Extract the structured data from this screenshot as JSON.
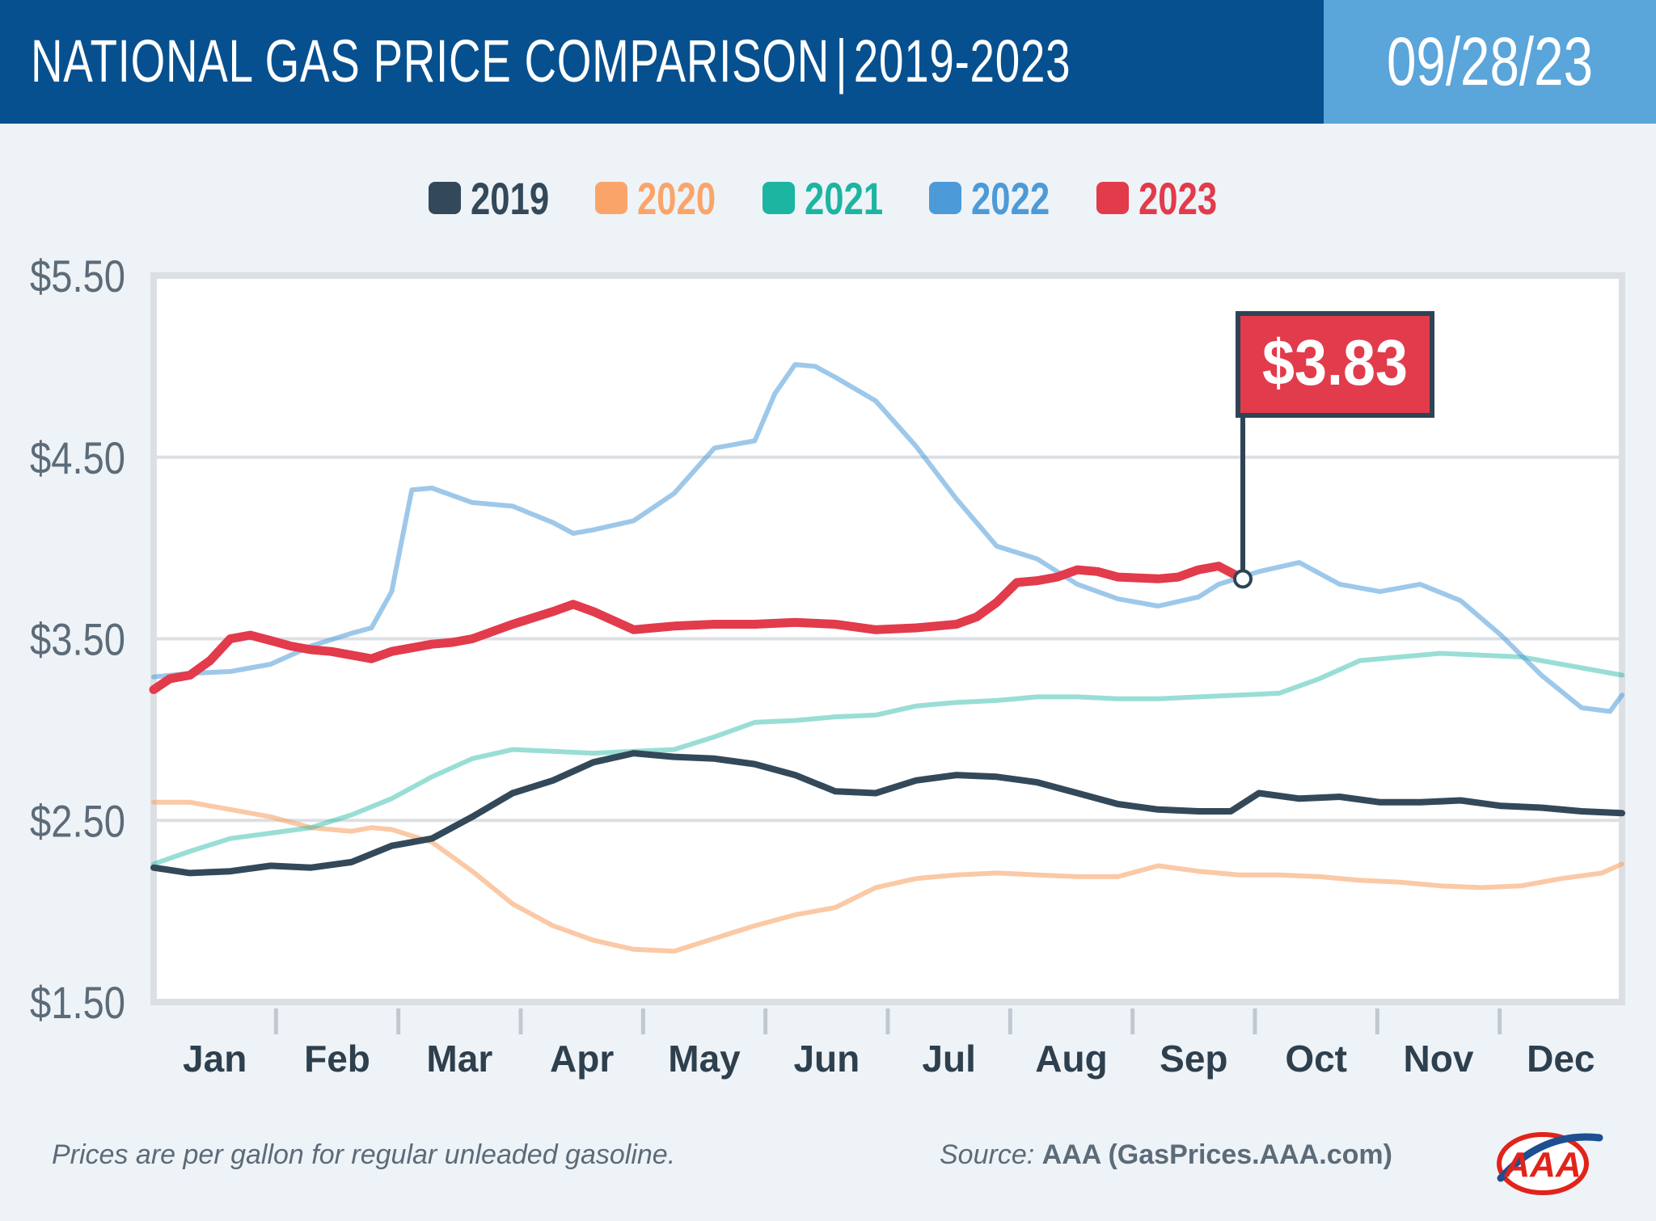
{
  "header": {
    "title_main": "NATIONAL GAS PRICE COMPARISON",
    "title_separator": "|",
    "title_years": "2019-2023",
    "date": "09/28/23"
  },
  "colors": {
    "header_bg": "#06508f",
    "date_bg": "#5aa5da",
    "2019": "#33495a",
    "2020": "#f9a56a",
    "2021": "#1cb5a2",
    "2022": "#4d9ad8",
    "2023": "#e23b4b"
  },
  "chart_data": {
    "type": "line",
    "title": "",
    "xlabel": "",
    "ylabel": "",
    "ylim": [
      1.5,
      5.5
    ],
    "y_tick_values": [
      1.5,
      2.5,
      3.5,
      4.5,
      5.5
    ],
    "y_tick_labels": [
      "$1.50",
      "$2.50",
      "$3.50",
      "$4.50",
      "$5.50"
    ],
    "months": [
      "Jan",
      "Feb",
      "Mar",
      "Apr",
      "May",
      "Jun",
      "Jul",
      "Aug",
      "Sep",
      "Oct",
      "Nov",
      "Dec"
    ],
    "x_unit": "day of year",
    "xlim": [
      1,
      365
    ],
    "grid": true,
    "legend_position": "top-center",
    "callout": {
      "label": "$3.83",
      "series": "2023",
      "x": 271,
      "y": 3.83
    },
    "series": [
      {
        "name": "2019",
        "x": [
          1,
          10,
          20,
          30,
          40,
          50,
          60,
          70,
          80,
          90,
          100,
          110,
          120,
          130,
          140,
          150,
          160,
          170,
          180,
          190,
          200,
          210,
          220,
          230,
          240,
          250,
          260,
          268,
          275,
          285,
          295,
          305,
          315,
          325,
          335,
          345,
          355,
          365
        ],
        "y": [
          2.24,
          2.21,
          2.22,
          2.25,
          2.24,
          2.27,
          2.36,
          2.4,
          2.52,
          2.65,
          2.72,
          2.82,
          2.87,
          2.85,
          2.84,
          2.81,
          2.75,
          2.66,
          2.65,
          2.72,
          2.75,
          2.74,
          2.71,
          2.65,
          2.59,
          2.56,
          2.55,
          2.55,
          2.65,
          2.62,
          2.63,
          2.6,
          2.6,
          2.61,
          2.58,
          2.57,
          2.55,
          2.54
        ]
      },
      {
        "name": "2020",
        "x": [
          1,
          10,
          20,
          30,
          40,
          50,
          55,
          60,
          70,
          80,
          90,
          100,
          110,
          120,
          130,
          140,
          150,
          160,
          170,
          180,
          190,
          200,
          210,
          220,
          230,
          240,
          250,
          260,
          270,
          280,
          290,
          300,
          310,
          320,
          330,
          340,
          350,
          360,
          365
        ],
        "y": [
          2.6,
          2.6,
          2.56,
          2.52,
          2.46,
          2.44,
          2.46,
          2.45,
          2.38,
          2.22,
          2.04,
          1.92,
          1.84,
          1.79,
          1.78,
          1.85,
          1.92,
          1.98,
          2.02,
          2.13,
          2.18,
          2.2,
          2.21,
          2.2,
          2.19,
          2.19,
          2.25,
          2.22,
          2.2,
          2.2,
          2.19,
          2.17,
          2.16,
          2.14,
          2.13,
          2.14,
          2.18,
          2.21,
          2.26
        ]
      },
      {
        "name": "2021",
        "x": [
          1,
          10,
          20,
          30,
          40,
          50,
          60,
          70,
          80,
          90,
          100,
          110,
          120,
          130,
          140,
          150,
          160,
          170,
          180,
          190,
          200,
          210,
          220,
          230,
          240,
          250,
          260,
          270,
          280,
          290,
          300,
          310,
          320,
          330,
          340,
          350,
          360,
          365
        ],
        "y": [
          2.26,
          2.33,
          2.4,
          2.43,
          2.46,
          2.53,
          2.62,
          2.74,
          2.84,
          2.89,
          2.88,
          2.87,
          2.88,
          2.89,
          2.96,
          3.04,
          3.05,
          3.07,
          3.08,
          3.13,
          3.15,
          3.16,
          3.18,
          3.18,
          3.17,
          3.17,
          3.18,
          3.19,
          3.2,
          3.28,
          3.38,
          3.4,
          3.42,
          3.41,
          3.4,
          3.36,
          3.32,
          3.3
        ]
      },
      {
        "name": "2022",
        "x": [
          1,
          10,
          20,
          30,
          40,
          50,
          55,
          60,
          65,
          70,
          80,
          90,
          100,
          105,
          110,
          120,
          130,
          140,
          150,
          155,
          160,
          165,
          170,
          180,
          190,
          200,
          210,
          220,
          230,
          240,
          250,
          260,
          265,
          275,
          285,
          295,
          305,
          315,
          325,
          335,
          345,
          355,
          362,
          365
        ],
        "y": [
          3.29,
          3.31,
          3.32,
          3.36,
          3.46,
          3.53,
          3.56,
          3.76,
          4.32,
          4.33,
          4.25,
          4.23,
          4.14,
          4.08,
          4.1,
          4.15,
          4.3,
          4.55,
          4.59,
          4.85,
          5.01,
          5.0,
          4.94,
          4.81,
          4.56,
          4.27,
          4.01,
          3.94,
          3.8,
          3.72,
          3.68,
          3.73,
          3.8,
          3.87,
          3.92,
          3.8,
          3.76,
          3.8,
          3.71,
          3.52,
          3.3,
          3.12,
          3.1,
          3.19
        ]
      },
      {
        "name": "2023",
        "x": [
          1,
          5,
          10,
          15,
          20,
          25,
          30,
          35,
          40,
          45,
          50,
          55,
          60,
          65,
          70,
          75,
          80,
          90,
          100,
          105,
          110,
          115,
          120,
          125,
          130,
          140,
          150,
          160,
          170,
          180,
          190,
          200,
          205,
          210,
          215,
          220,
          225,
          230,
          235,
          240,
          250,
          255,
          260,
          265,
          271
        ],
        "y": [
          3.22,
          3.28,
          3.3,
          3.38,
          3.5,
          3.52,
          3.49,
          3.46,
          3.44,
          3.43,
          3.41,
          3.39,
          3.43,
          3.45,
          3.47,
          3.48,
          3.5,
          3.58,
          3.65,
          3.69,
          3.65,
          3.6,
          3.55,
          3.56,
          3.57,
          3.58,
          3.58,
          3.59,
          3.58,
          3.55,
          3.56,
          3.58,
          3.62,
          3.7,
          3.81,
          3.82,
          3.84,
          3.88,
          3.87,
          3.84,
          3.83,
          3.84,
          3.88,
          3.9,
          3.83
        ]
      }
    ]
  },
  "footer": {
    "note": "Prices are per gallon for regular unleaded gasoline.",
    "source_label": "Source:",
    "source_value": "AAA (GasPrices.AAA.com)",
    "logo_text": "AAA"
  }
}
